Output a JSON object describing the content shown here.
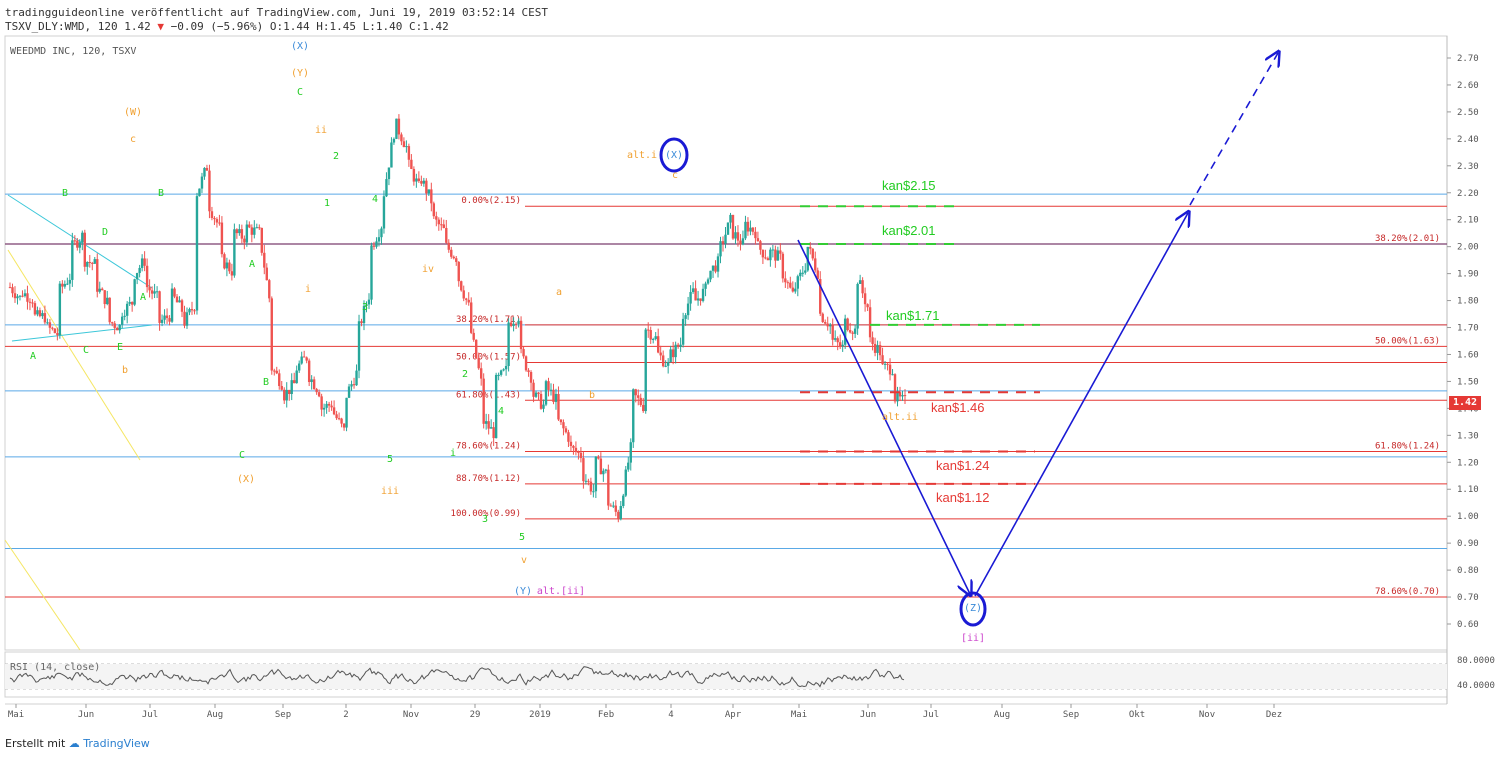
{
  "header": {
    "line1": "tradingguideonline veröffentlicht auf TradingView.com, Juni 19, 2019 03:52:14 CEST",
    "line2_prefix": "TSXV_DLY:WMD, 120 1.42",
    "line2_change": "−0.09 (−5.96%)",
    "line2_ohlc": "O:1.44 H:1.45 L:1.40 C:1.42"
  },
  "symbol_name": "WEEDMD INC, 120, TSXV",
  "current_price": "1.42",
  "footer": {
    "prefix": "Erstellt mit",
    "brand": "TradingView"
  },
  "colors": {
    "candle_up": "#26a69a",
    "candle_down": "#ef5350",
    "fib_line": "#e53935",
    "blue_line": "#5aa9e6",
    "purple_line": "#7b3f6e",
    "arrow": "#1a1ad4",
    "green_label": "#22cc22",
    "orange_label": "#f0a030",
    "magenta_label": "#cc44cc",
    "red_label": "#e53935"
  },
  "chart_data": {
    "type": "candlestick",
    "title": "WEEDMD INC, 120, TSXV",
    "ylim": [
      0.45,
      2.78
    ],
    "y_ticks": [
      "2.70",
      "2.60",
      "2.50",
      "2.40",
      "2.30",
      "2.20",
      "2.10",
      "2.00",
      "1.90",
      "1.80",
      "1.70",
      "1.60",
      "1.50",
      "1.40",
      "1.30",
      "1.20",
      "1.10",
      "1.00",
      "0.90",
      "0.80",
      "0.70",
      "0.60"
    ],
    "x_ticks": [
      "Mai",
      "Jun",
      "Jul",
      "Aug",
      "Sep",
      "2",
      "Nov",
      "29",
      "2019",
      "Feb",
      "4",
      "Apr",
      "Mai",
      "Jun",
      "Jul",
      "Aug",
      "Sep",
      "Okt",
      "Nov",
      "Dez"
    ],
    "price_path": [
      [
        1.85,
        1.8
      ],
      [
        1.83,
        1.8
      ],
      [
        1.74,
        1.74
      ],
      [
        1.7,
        1.67
      ],
      [
        1.84,
        1.9
      ],
      [
        2.0,
        2.05
      ],
      [
        1.95,
        1.93
      ],
      [
        1.85,
        1.78
      ],
      [
        1.72,
        1.7
      ],
      [
        1.76,
        1.8
      ],
      [
        1.9,
        1.96
      ],
      [
        1.85,
        1.8
      ],
      [
        1.72,
        1.75
      ],
      [
        1.82,
        1.75
      ],
      [
        1.72,
        1.8
      ],
      [
        2.2,
        2.32
      ],
      [
        2.15,
        2.05
      ],
      [
        1.95,
        1.9
      ],
      [
        2.05,
        2.03
      ],
      [
        2.07,
        2.05
      ],
      [
        2.05,
        1.75
      ],
      [
        1.55,
        1.48
      ],
      [
        1.45,
        1.5
      ],
      [
        1.55,
        1.6
      ],
      [
        1.52,
        1.45
      ],
      [
        1.4,
        1.42
      ],
      [
        1.38,
        1.3
      ],
      [
        1.45,
        1.55
      ],
      [
        1.7,
        1.85
      ],
      [
        2.0,
        2.1
      ],
      [
        2.2,
        2.48
      ],
      [
        2.45,
        2.35
      ],
      [
        2.3,
        2.2
      ],
      [
        2.25,
        2.15
      ],
      [
        2.1,
        2.05
      ],
      [
        2.0,
        1.95
      ],
      [
        1.88,
        1.75
      ],
      [
        1.68,
        1.45
      ],
      [
        1.35,
        1.3
      ],
      [
        1.5,
        1.55
      ],
      [
        1.72,
        1.75
      ],
      [
        1.6,
        1.5
      ],
      [
        1.45,
        1.4
      ],
      [
        1.48,
        1.42
      ],
      [
        1.35,
        1.28
      ],
      [
        1.25,
        1.22
      ],
      [
        1.15,
        1.08
      ],
      [
        1.2,
        1.15
      ],
      [
        1.05,
        0.99
      ],
      [
        1.05,
        1.3
      ],
      [
        1.45,
        1.4
      ],
      [
        1.7,
        1.65
      ],
      [
        1.6,
        1.55
      ],
      [
        1.6,
        1.65
      ],
      [
        1.75,
        1.85
      ],
      [
        1.8,
        1.85
      ],
      [
        1.9,
        1.95
      ],
      [
        2.0,
        2.12
      ],
      [
        2.05,
        2.0
      ],
      [
        2.08,
        2.05
      ],
      [
        2.0,
        1.95
      ],
      [
        1.98,
        1.95
      ],
      [
        1.9,
        1.8
      ],
      [
        1.85,
        1.95
      ],
      [
        2.0,
        1.88
      ],
      [
        1.75,
        1.7
      ],
      [
        1.65,
        1.62
      ],
      [
        1.72,
        1.68
      ],
      [
        1.88,
        1.75
      ],
      [
        1.65,
        1.6
      ],
      [
        1.55,
        1.55
      ],
      [
        1.44,
        1.42
      ]
    ],
    "fibonacci_left": [
      {
        "label": "0.00%(2.15)",
        "value": 2.15
      },
      {
        "label": "38.20%(1.71)",
        "value": 1.71
      },
      {
        "label": "50.00%(1.57)",
        "value": 1.57
      },
      {
        "label": "61.80%(1.43)",
        "value": 1.43
      },
      {
        "label": "78.60%(1.24)",
        "value": 1.24
      },
      {
        "label": "88.70%(1.12)",
        "value": 1.12
      },
      {
        "label": "100.00%(0.99)",
        "value": 0.99
      }
    ],
    "fibonacci_right": [
      {
        "label": "38.20%(2.01)",
        "value": 2.01
      },
      {
        "label": "50.00%(1.63)",
        "value": 1.63
      },
      {
        "label": "61.80%(1.24)",
        "value": 1.24
      },
      {
        "label": "78.60%(0.70)",
        "value": 0.7
      }
    ],
    "targets": [
      {
        "label": "kan$2.15",
        "value": 2.15,
        "color": "green"
      },
      {
        "label": "kan$2.01",
        "value": 2.01,
        "color": "green"
      },
      {
        "label": "kan$1.71",
        "value": 1.71,
        "color": "green"
      },
      {
        "label": "kan$1.46",
        "value": 1.46,
        "color": "red"
      },
      {
        "label": "kan$1.24",
        "value": 1.24,
        "color": "red"
      },
      {
        "label": "kan$1.12",
        "value": 1.12,
        "color": "red"
      }
    ],
    "wave_labels": [
      {
        "text": "(X)",
        "color": "blue"
      },
      {
        "text": "(Y)",
        "color": "orange"
      },
      {
        "text": "C",
        "color": "green"
      },
      {
        "text": "(W)",
        "color": "orange"
      },
      {
        "text": "c",
        "color": "orange"
      },
      {
        "text": "B",
        "color": "green"
      },
      {
        "text": "B",
        "color": "green"
      },
      {
        "text": "ii",
        "color": "orange"
      },
      {
        "text": "2",
        "color": "green"
      },
      {
        "text": "1",
        "color": "green"
      },
      {
        "text": "4",
        "color": "green"
      },
      {
        "text": "D",
        "color": "green"
      },
      {
        "text": "A",
        "color": "green"
      },
      {
        "text": "iv",
        "color": "orange"
      },
      {
        "text": "i",
        "color": "orange"
      },
      {
        "text": "A",
        "color": "green"
      },
      {
        "text": "3",
        "color": "green"
      },
      {
        "text": "A",
        "color": "green"
      },
      {
        "text": "C",
        "color": "green"
      },
      {
        "text": "E",
        "color": "green"
      },
      {
        "text": "b",
        "color": "orange"
      },
      {
        "text": "B",
        "color": "green"
      },
      {
        "text": "2",
        "color": "green"
      },
      {
        "text": "4",
        "color": "green"
      },
      {
        "text": "C",
        "color": "green"
      },
      {
        "text": "5",
        "color": "green"
      },
      {
        "text": "i",
        "color": "green"
      },
      {
        "text": "(X)",
        "color": "orange"
      },
      {
        "text": "iii",
        "color": "orange"
      },
      {
        "text": "3",
        "color": "green"
      },
      {
        "text": "5",
        "color": "green"
      },
      {
        "text": "v",
        "color": "orange"
      },
      {
        "text": "(Y)",
        "color": "blue"
      },
      {
        "text": "alt.[ii]",
        "color": "magenta"
      },
      {
        "text": "a",
        "color": "orange"
      },
      {
        "text": "b",
        "color": "orange"
      },
      {
        "text": "alt.i",
        "color": "orange"
      },
      {
        "text": "(X)",
        "color": "blue"
      },
      {
        "text": "c",
        "color": "orange"
      },
      {
        "text": "alt.ii",
        "color": "orange"
      },
      {
        "text": "(Z)",
        "color": "blue"
      },
      {
        "text": "[ii]",
        "color": "magenta"
      }
    ],
    "rsi": {
      "label": "RSI (14, close)",
      "levels": [
        "80.0000",
        "40.0000"
      ]
    }
  }
}
